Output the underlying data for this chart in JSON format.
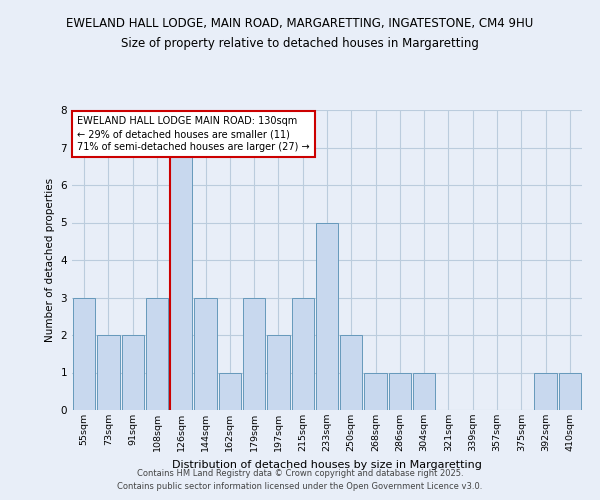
{
  "title_line1": "EWELAND HALL LODGE, MAIN ROAD, MARGARETTING, INGATESTONE, CM4 9HU",
  "title_line2": "Size of property relative to detached houses in Margaretting",
  "xlabel": "Distribution of detached houses by size in Margaretting",
  "ylabel": "Number of detached properties",
  "bar_labels": [
    "55sqm",
    "73sqm",
    "91sqm",
    "108sqm",
    "126sqm",
    "144sqm",
    "162sqm",
    "179sqm",
    "197sqm",
    "215sqm",
    "233sqm",
    "250sqm",
    "268sqm",
    "286sqm",
    "304sqm",
    "321sqm",
    "339sqm",
    "357sqm",
    "375sqm",
    "392sqm",
    "410sqm"
  ],
  "bar_heights": [
    3,
    2,
    2,
    3,
    7,
    3,
    1,
    3,
    2,
    3,
    5,
    2,
    1,
    1,
    1,
    0,
    0,
    0,
    0,
    1,
    1
  ],
  "bar_color": "#c8d8ee",
  "bar_edge_color": "#6699bb",
  "reference_line_index": 4,
  "reference_line_color": "#cc0000",
  "annotation_text": "EWELAND HALL LODGE MAIN ROAD: 130sqm\n← 29% of detached houses are smaller (11)\n71% of semi-detached houses are larger (27) →",
  "annotation_box_facecolor": "#ffffff",
  "annotation_box_edgecolor": "#cc0000",
  "ylim": [
    0,
    8
  ],
  "yticks": [
    0,
    1,
    2,
    3,
    4,
    5,
    6,
    7,
    8
  ],
  "grid_color": "#bbccdd",
  "background_color": "#e8eef8",
  "axes_facecolor": "#e8eef8",
  "footer_line1": "Contains HM Land Registry data © Crown copyright and database right 2025.",
  "footer_line2": "Contains public sector information licensed under the Open Government Licence v3.0."
}
